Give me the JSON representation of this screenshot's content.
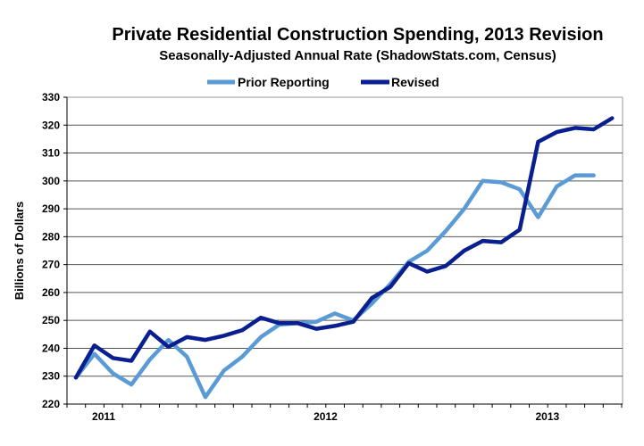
{
  "chart_data": {
    "type": "line",
    "title": "Private Residential Construction Spending, 2013 Revision",
    "subtitle": "Seasonally-Adjusted Annual Rate (ShadowStats.com, Census)",
    "xlabel": "",
    "ylabel": "Billions of Dollars",
    "ylim": [
      220,
      330
    ],
    "yticks": [
      220,
      230,
      240,
      250,
      260,
      270,
      280,
      290,
      300,
      310,
      320,
      330
    ],
    "x_start": "2010-12",
    "x_tick_labels": [
      {
        "label": "2011",
        "month_index": 1.5
      },
      {
        "label": "2012",
        "month_index": 13.5
      },
      {
        "label": "2013",
        "month_index": 25.5
      }
    ],
    "grid": true,
    "legend": "top-center",
    "series": [
      {
        "name": "Prior Reporting",
        "color": "#5B9BD5",
        "values": [
          229.5,
          238,
          231,
          227,
          236,
          243,
          237,
          222.5,
          232,
          237,
          244,
          248.5,
          249,
          249.5,
          252.5,
          250,
          256,
          263,
          271,
          275,
          282,
          290,
          300,
          299.5,
          297,
          287,
          298,
          302,
          302
        ]
      },
      {
        "name": "Revised",
        "color": "#0A1F8F",
        "values": [
          229.5,
          241,
          236.5,
          235.5,
          246,
          240.5,
          244,
          243,
          244.5,
          246.5,
          251,
          249,
          249,
          247,
          248,
          249.5,
          258,
          262,
          270.5,
          267.5,
          269.5,
          275,
          278.5,
          278,
          282.5,
          314,
          317.5,
          319,
          318.5,
          322.5
        ]
      }
    ]
  }
}
